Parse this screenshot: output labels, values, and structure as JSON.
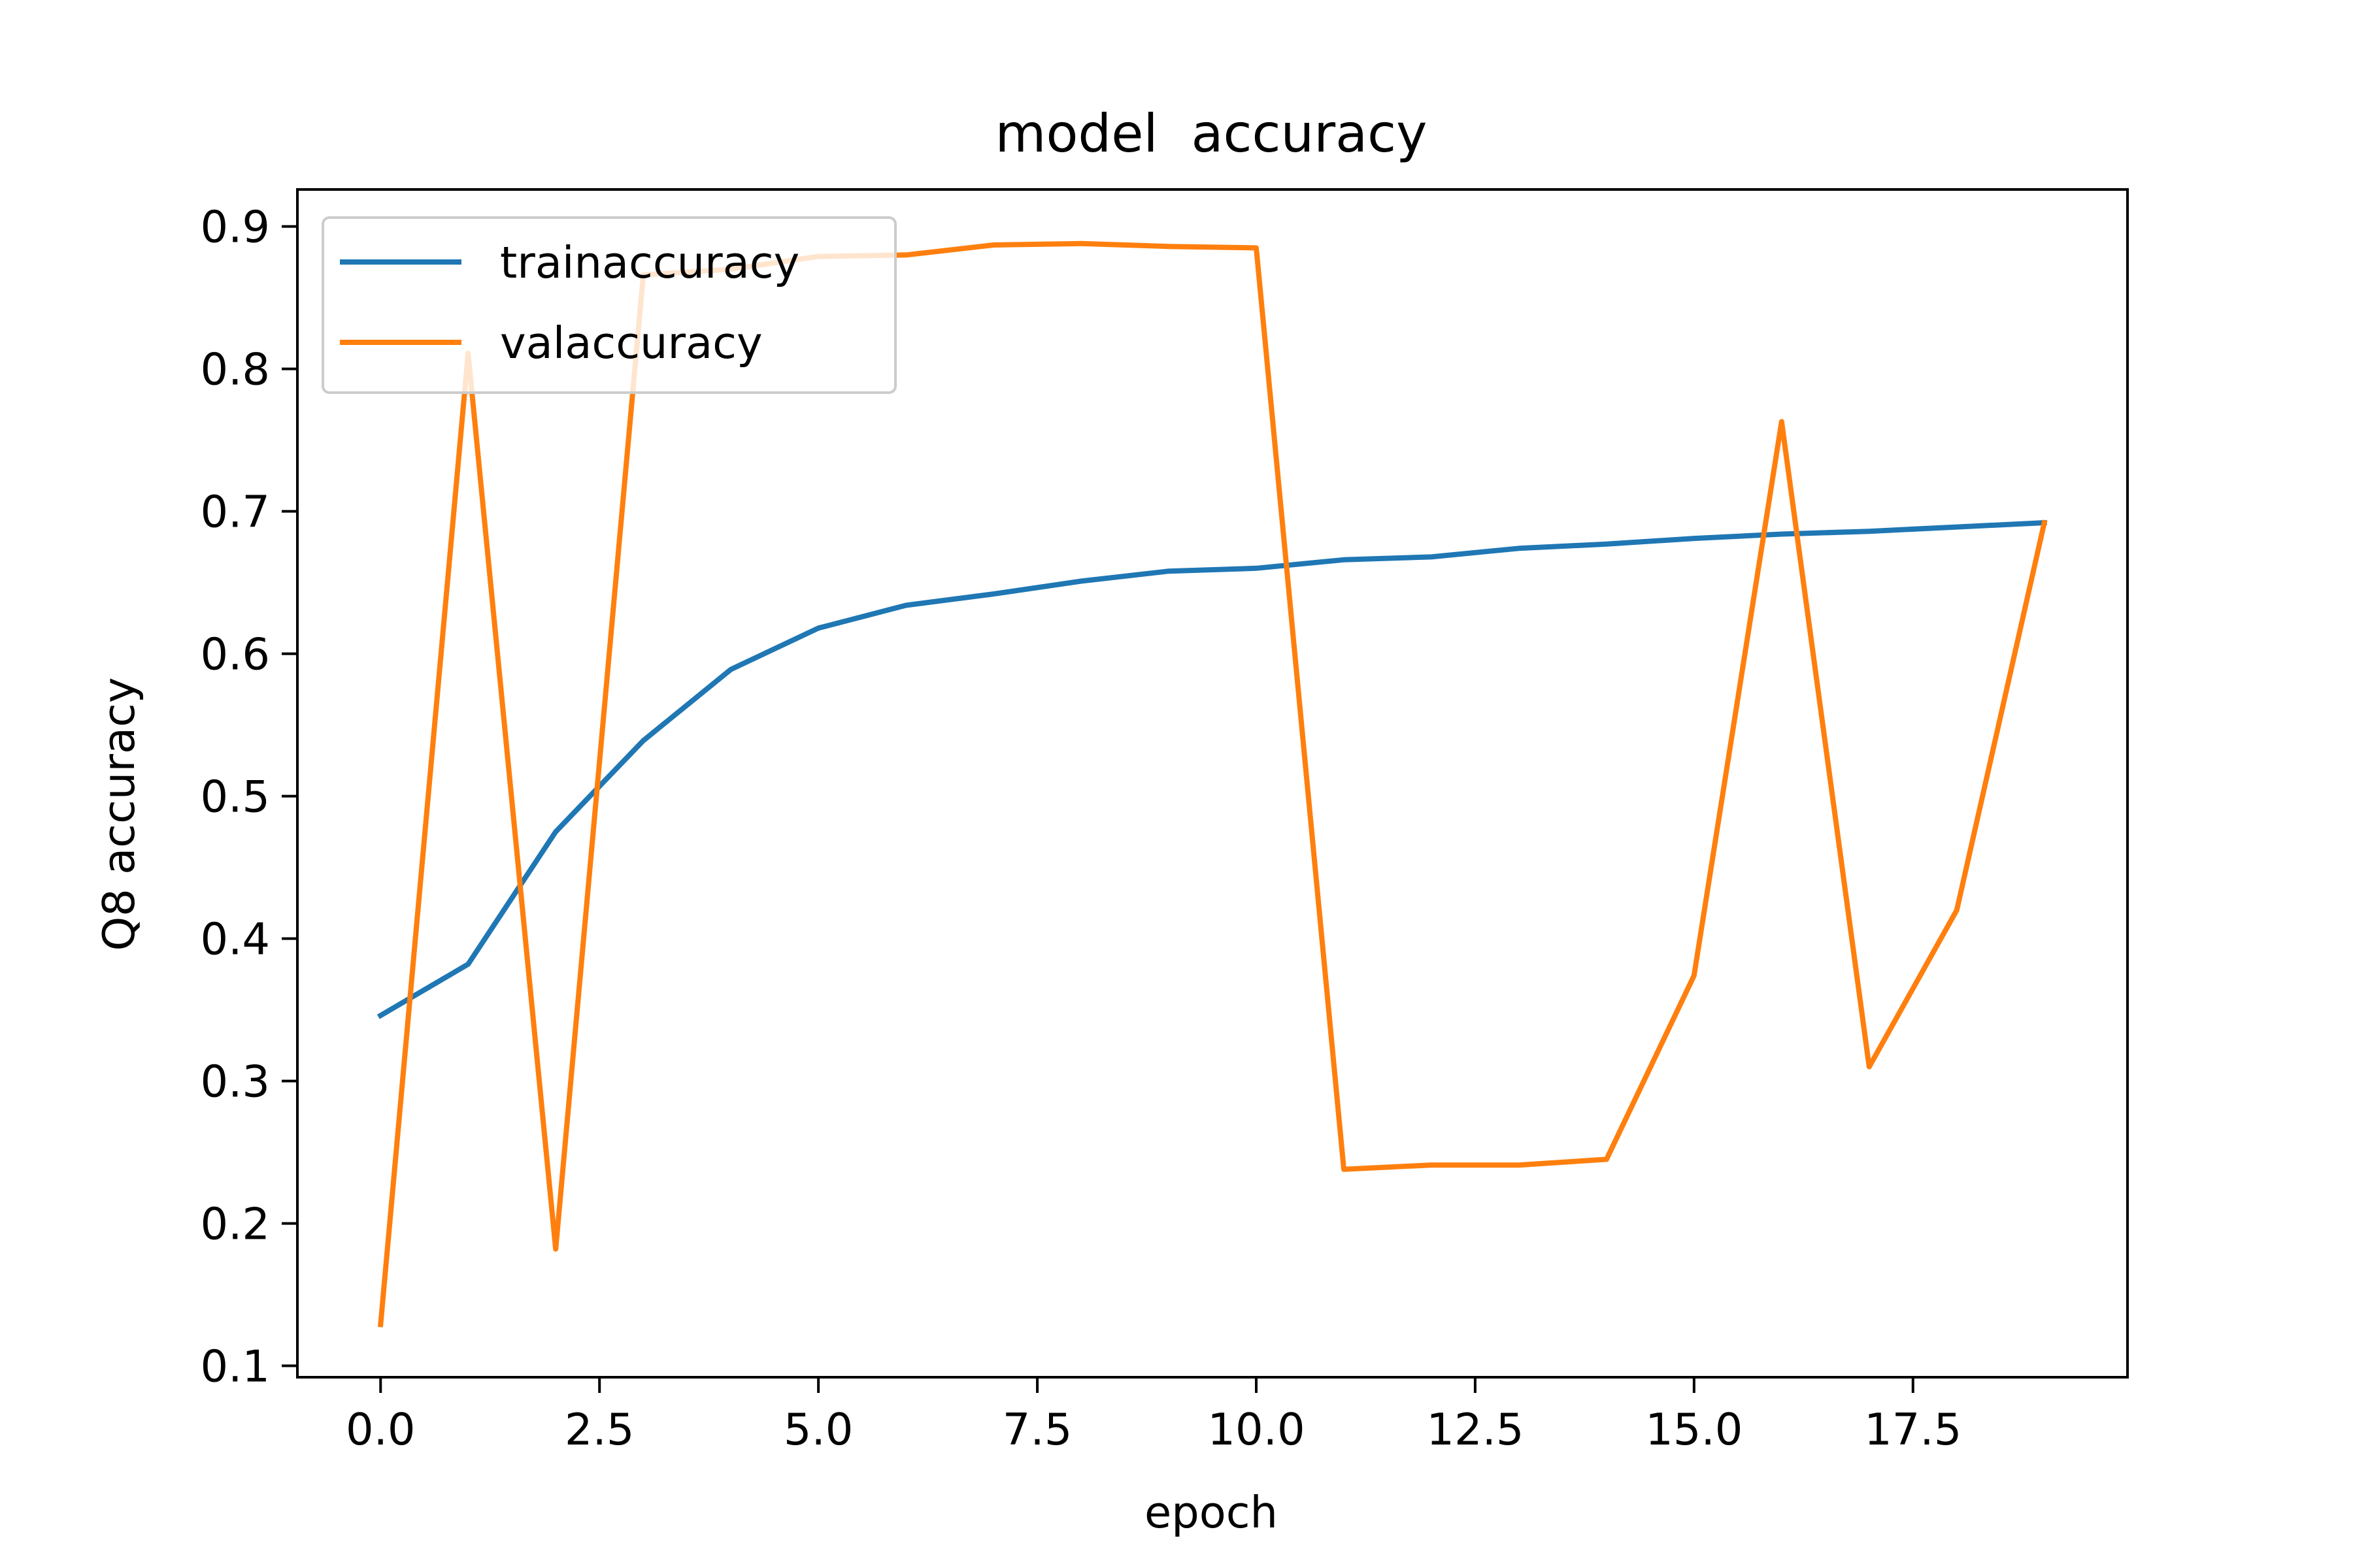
{
  "chart_data": {
    "type": "line",
    "title": "model  accuracy",
    "xlabel": "epoch",
    "ylabel": "Q8 accuracy",
    "xlim": [
      -0.95,
      19.95
    ],
    "ylim": [
      0.092,
      0.926
    ],
    "xticks": [
      0.0,
      2.5,
      5.0,
      7.5,
      10.0,
      12.5,
      15.0,
      17.5
    ],
    "xtick_labels": [
      "0.0",
      "2.5",
      "5.0",
      "7.5",
      "10.0",
      "12.5",
      "15.0",
      "17.5"
    ],
    "yticks": [
      0.1,
      0.2,
      0.3,
      0.4,
      0.5,
      0.6,
      0.7,
      0.8,
      0.9
    ],
    "ytick_labels": [
      "0.1",
      "0.2",
      "0.3",
      "0.4",
      "0.5",
      "0.6",
      "0.7",
      "0.8",
      "0.9"
    ],
    "grid": false,
    "legend_position": "upper-left",
    "x": [
      0,
      1,
      2,
      3,
      4,
      5,
      6,
      7,
      8,
      9,
      10,
      11,
      12,
      13,
      14,
      15,
      16,
      17,
      18,
      19
    ],
    "series": [
      {
        "name": "trainaccuracy",
        "color": "#1f77b4",
        "values": [
          0.346,
          0.382,
          0.475,
          0.539,
          0.589,
          0.618,
          0.634,
          0.642,
          0.651,
          0.658,
          0.66,
          0.666,
          0.668,
          0.674,
          0.677,
          0.681,
          0.684,
          0.686,
          0.689,
          0.692
        ]
      },
      {
        "name": "valaccuracy",
        "color": "#ff7f0e",
        "values": [
          0.129,
          0.811,
          0.182,
          0.866,
          0.87,
          0.879,
          0.88,
          0.887,
          0.888,
          0.886,
          0.885,
          0.238,
          0.241,
          0.241,
          0.245,
          0.374,
          0.763,
          0.31,
          0.42,
          0.692
        ]
      }
    ]
  }
}
